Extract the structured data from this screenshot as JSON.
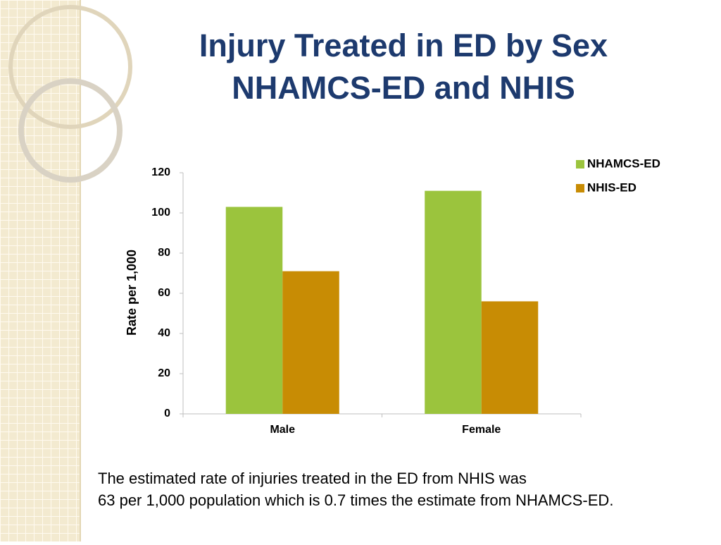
{
  "chart_data": {
    "type": "bar",
    "title": [
      "Injury Treated in ED by Sex",
      "NHAMCS-ED and NHIS"
    ],
    "y_label": "Rate per 1,000",
    "categories": [
      "Male",
      "Female"
    ],
    "series": [
      {
        "name": "NHAMCS-ED",
        "color": "#9bc43d",
        "values": [
          103,
          111
        ]
      },
      {
        "name": "NHIS-ED",
        "color": "#c88c04",
        "values": [
          71,
          56
        ]
      }
    ],
    "ylim": [
      0,
      120
    ],
    "yticks": [
      0,
      20,
      40,
      60,
      80,
      100,
      120
    ],
    "grid": false,
    "legend": "top-right",
    "annotations": [
      "The estimated rate of injuries treated in the ED from NHIS was",
      "63 per 1,000 population which is  0.7 times the estimate from NHAMCS-ED."
    ]
  }
}
